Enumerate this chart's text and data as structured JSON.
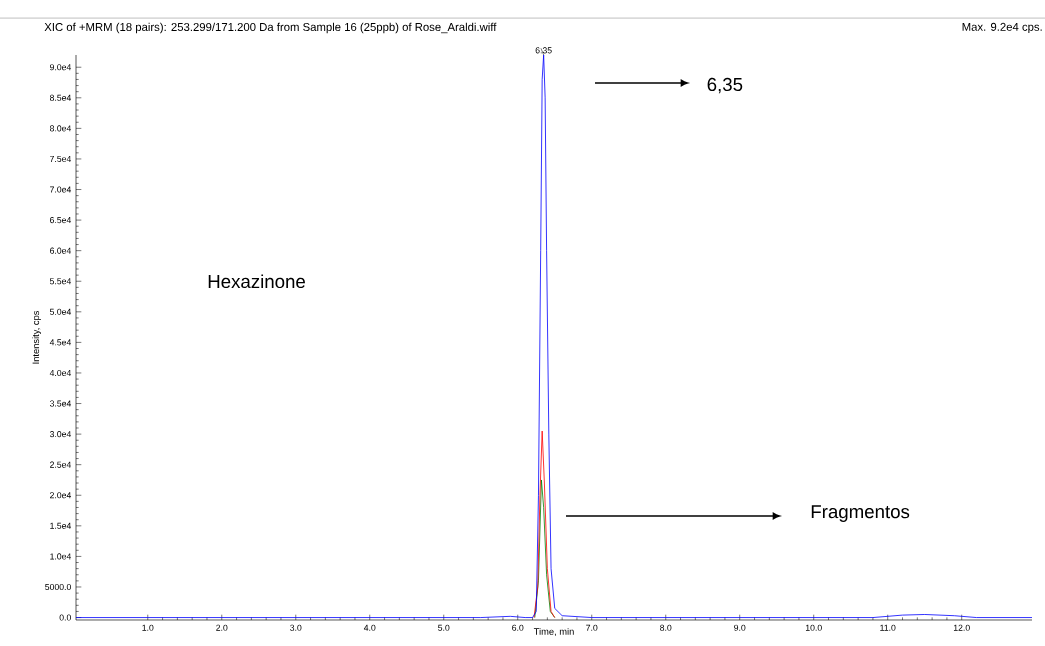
{
  "chart_data": {
    "type": "line",
    "title": "XIC of +MRM (18 pairs): 253.299/171.200 Da  from Sample 16 (25ppb) of Rose_Araldi.wiff",
    "subtitle": "Max. 9.2e4 cps.",
    "xlabel": "Time, min",
    "ylabel": "Intensity, cps",
    "xlim": [
      0.03,
      12.95
    ],
    "ylim": [
      -400,
      92000
    ],
    "xticks": [
      {
        "value": 1,
        "label": "1.0"
      },
      {
        "value": 2,
        "label": "2.0"
      },
      {
        "value": 3,
        "label": "3.0"
      },
      {
        "value": 4,
        "label": "4.0"
      },
      {
        "value": 5,
        "label": "5.0"
      },
      {
        "value": 6,
        "label": "6.0"
      },
      {
        "value": 7,
        "label": "7.0"
      },
      {
        "value": 8,
        "label": "8.0"
      },
      {
        "value": 9,
        "label": "9.0"
      },
      {
        "value": 10,
        "label": "10.0"
      },
      {
        "value": 11,
        "label": "11.0"
      },
      {
        "value": 12,
        "label": "12.0"
      }
    ],
    "yticks": [
      {
        "value": 0,
        "label": "0.0"
      },
      {
        "value": 5000,
        "label": "5000.0"
      },
      {
        "value": 10000,
        "label": "1.0e4"
      },
      {
        "value": 15000,
        "label": "1.5e4"
      },
      {
        "value": 20000,
        "label": "2.0e4"
      },
      {
        "value": 25000,
        "label": "2.5e4"
      },
      {
        "value": 30000,
        "label": "3.0e4"
      },
      {
        "value": 35000,
        "label": "3.5e4"
      },
      {
        "value": 40000,
        "label": "4.0e4"
      },
      {
        "value": 45000,
        "label": "4.5e4"
      },
      {
        "value": 50000,
        "label": "5.0e4"
      },
      {
        "value": 55000,
        "label": "5.5e4"
      },
      {
        "value": 60000,
        "label": "6.0e4"
      },
      {
        "value": 65000,
        "label": "6.5e4"
      },
      {
        "value": 70000,
        "label": "7.0e4"
      },
      {
        "value": 75000,
        "label": "7.5e4"
      },
      {
        "value": 80000,
        "label": "8.0e4"
      },
      {
        "value": 85000,
        "label": "8.5e4"
      },
      {
        "value": 90000,
        "label": "9.0e4"
      }
    ],
    "grid": false,
    "marker": "none",
    "line_style": "solid",
    "series": [
      {
        "color": "#0000ff",
        "x": [
          0.03,
          1.5,
          5.5,
          5.9,
          6.1,
          6.2,
          6.25,
          6.28,
          6.31,
          6.33,
          6.35,
          6.37,
          6.39,
          6.42,
          6.45,
          6.5,
          6.6,
          7.0,
          10.8,
          11.2,
          11.5,
          11.9,
          12.2,
          12.95
        ],
        "values": [
          0,
          0,
          0,
          200,
          0,
          0,
          1000,
          20000,
          60000,
          88000,
          92000,
          85000,
          60000,
          30000,
          8000,
          1500,
          300,
          0,
          0,
          400,
          500,
          300,
          0,
          0
        ]
      },
      {
        "color": "#ff0000",
        "x": [
          6.22,
          6.27,
          6.3,
          6.33,
          6.36,
          6.4,
          6.45,
          6.5
        ],
        "values": [
          0,
          5000,
          20000,
          30500,
          22000,
          8000,
          1000,
          0
        ]
      },
      {
        "color": "#008000",
        "x": [
          6.23,
          6.28,
          6.32,
          6.35,
          6.39,
          6.44,
          6.5
        ],
        "values": [
          0,
          6000,
          22500,
          18000,
          7000,
          1000,
          0
        ]
      }
    ],
    "annotations": [
      {
        "text": "6.35",
        "x": 6.35,
        "y": 92000
      },
      "6,35",
      "Hexazinone",
      "Fragmentos"
    ]
  }
}
